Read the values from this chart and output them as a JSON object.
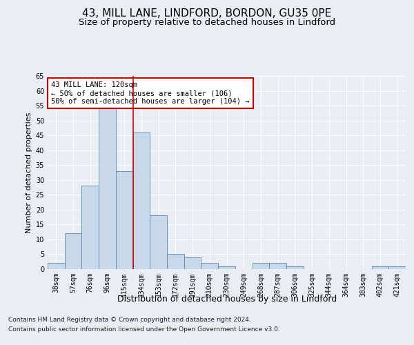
{
  "title1": "43, MILL LANE, LINDFORD, BORDON, GU35 0PE",
  "title2": "Size of property relative to detached houses in Lindford",
  "xlabel": "Distribution of detached houses by size in Lindford",
  "ylabel": "Number of detached properties",
  "categories": [
    "38sqm",
    "57sqm",
    "76sqm",
    "96sqm",
    "115sqm",
    "134sqm",
    "153sqm",
    "172sqm",
    "191sqm",
    "210sqm",
    "230sqm",
    "249sqm",
    "268sqm",
    "287sqm",
    "306sqm",
    "325sqm",
    "344sqm",
    "364sqm",
    "383sqm",
    "402sqm",
    "421sqm"
  ],
  "values": [
    2,
    12,
    28,
    54,
    33,
    46,
    18,
    5,
    4,
    2,
    1,
    0,
    2,
    2,
    1,
    0,
    0,
    0,
    0,
    1,
    1
  ],
  "bar_color": "#c8d8e8",
  "bar_edge_color": "#5a8ab0",
  "vline_x": 4.5,
  "vline_color": "#cc0000",
  "annotation_text": "43 MILL LANE: 120sqm\n← 50% of detached houses are smaller (106)\n50% of semi-detached houses are larger (104) →",
  "annotation_box_color": "#ffffff",
  "annotation_box_edge": "#cc0000",
  "ylim": [
    0,
    65
  ],
  "yticks": [
    0,
    5,
    10,
    15,
    20,
    25,
    30,
    35,
    40,
    45,
    50,
    55,
    60,
    65
  ],
  "bg_color": "#e8eef4",
  "plot_bg_color": "#e8eef4",
  "footer1": "Contains HM Land Registry data © Crown copyright and database right 2024.",
  "footer2": "Contains public sector information licensed under the Open Government Licence v3.0.",
  "title1_fontsize": 11,
  "title2_fontsize": 9.5,
  "xlabel_fontsize": 9,
  "ylabel_fontsize": 8,
  "tick_fontsize": 7,
  "footer_fontsize": 6.5,
  "ann_fontsize": 7.5
}
